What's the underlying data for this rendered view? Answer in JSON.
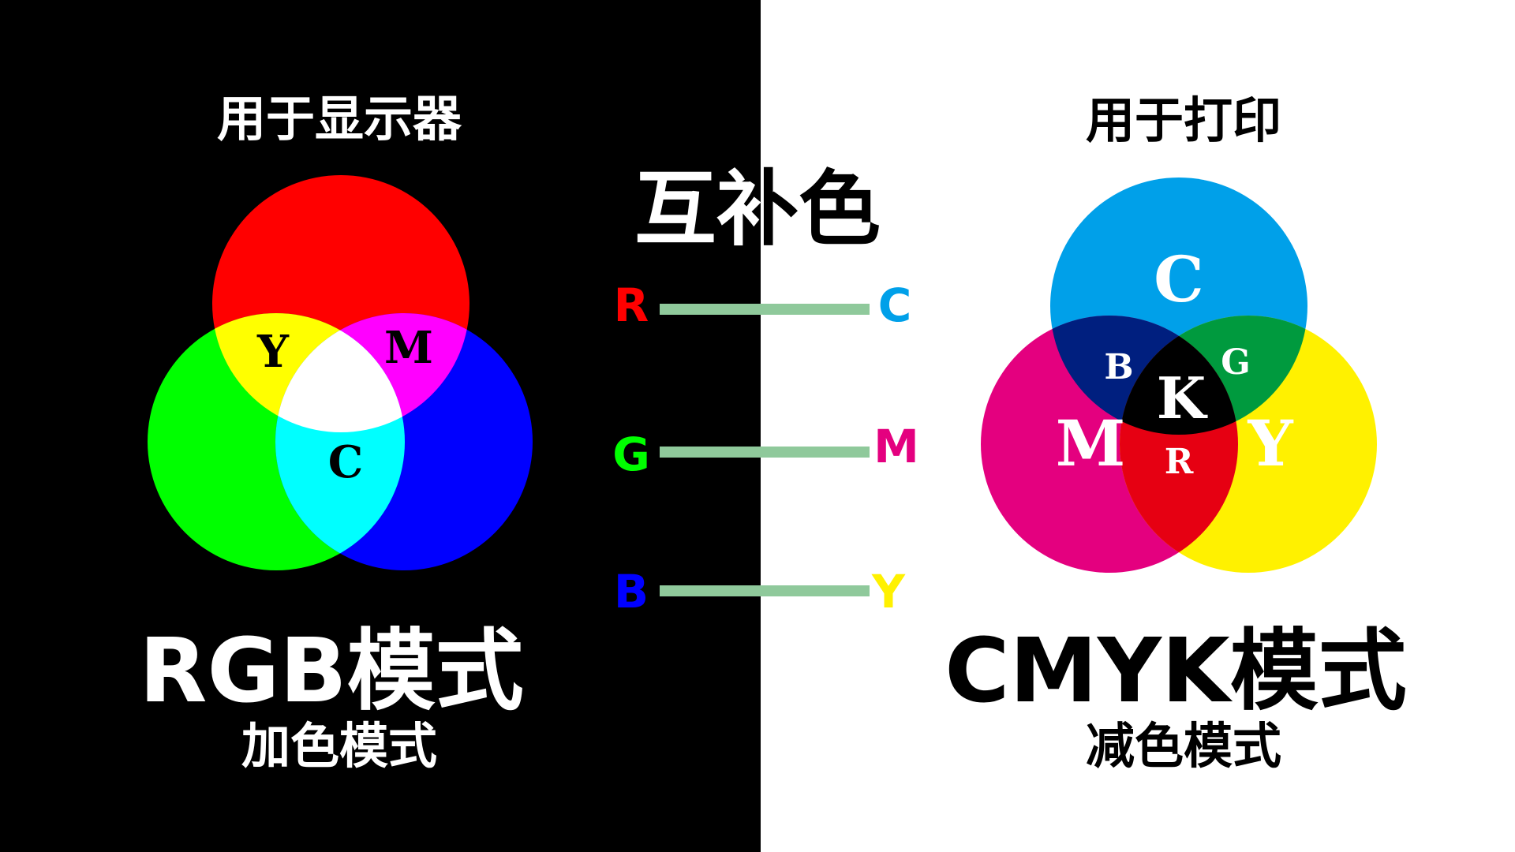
{
  "headings": {
    "display_label": "用于显示器",
    "print_label": "用于打印",
    "center_title": "互补色",
    "rgb_title": "RGB模式",
    "rgb_subtitle": "加色模式",
    "cmyk_title": "CMYK模式",
    "cmyk_subtitle": "减色模式"
  },
  "rgb_diagram": {
    "circles": [
      {
        "name": "red",
        "color": "#ff0000"
      },
      {
        "name": "green",
        "color": "#00ff00"
      },
      {
        "name": "blue",
        "color": "#0000ff"
      }
    ],
    "overlaps": {
      "red_green": {
        "label": "Y",
        "color": "#ffff00"
      },
      "red_blue": {
        "label": "M",
        "color": "#ff00ff"
      },
      "green_blue": {
        "label": "C",
        "color": "#00ffff"
      },
      "all": {
        "label": "",
        "color": "#ffffff"
      }
    }
  },
  "cmyk_diagram": {
    "circles": [
      {
        "name": "cyan",
        "label": "C",
        "color": "#00a0e9"
      },
      {
        "name": "magenta",
        "label": "M",
        "color": "#e4007f"
      },
      {
        "name": "yellow",
        "label": "Y",
        "color": "#fff100"
      }
    ],
    "overlaps": {
      "cyan_magenta": {
        "label": "B",
        "color": "#001f7f"
      },
      "cyan_yellow": {
        "label": "G",
        "color": "#009a3e"
      },
      "magenta_yellow": {
        "label": "R",
        "color": "#e60012"
      },
      "all": {
        "label": "K",
        "color": "#000000"
      }
    }
  },
  "complementary_pairs": [
    {
      "left": "R",
      "left_color": "#ff0000",
      "right": "C",
      "right_color": "#00a0e9"
    },
    {
      "left": "G",
      "left_color": "#00ff00",
      "right": "M",
      "right_color": "#e4007f"
    },
    {
      "left": "B",
      "left_color": "#0000ff",
      "right": "Y",
      "right_color": "#fff100"
    }
  ],
  "connector_color": "#8fc99b"
}
